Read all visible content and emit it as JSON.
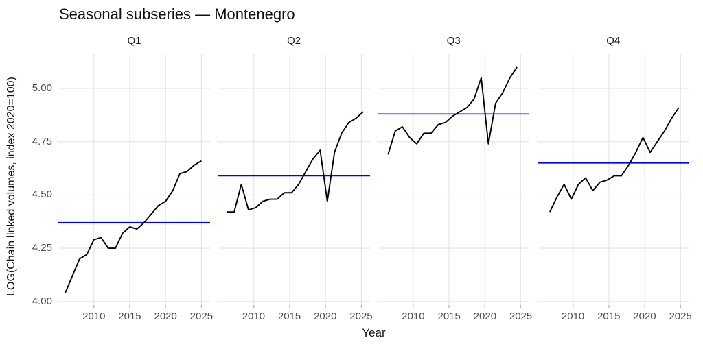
{
  "title": "Seasonal subseries — Montenegro",
  "chart_data": {
    "type": "line",
    "title": "Seasonal subseries — Montenegro",
    "xlabel": "Year",
    "ylabel": "LOG(Chain linked volumes, index 2020=100)",
    "facets": "quarterly seasonal subseries, one panel per quarter",
    "grid": true,
    "legend": false,
    "x_range": [
      2005,
      2026.2
    ],
    "y_range": [
      3.98,
      5.16
    ],
    "x_axis": {
      "ticks": [
        {
          "v": 2010,
          "label": "2010"
        },
        {
          "v": 2015,
          "label": "2015"
        },
        {
          "v": 2020,
          "label": "2020"
        },
        {
          "v": 2025,
          "label": "2025"
        }
      ]
    },
    "y_axis": {
      "ticks": [
        {
          "v": 5.0,
          "label": "5.00"
        },
        {
          "v": 4.75,
          "label": "4.75"
        },
        {
          "v": 4.5,
          "label": "4.50"
        },
        {
          "v": 4.25,
          "label": "4.25"
        },
        {
          "v": 4.0,
          "label": "4.00"
        }
      ]
    },
    "colors": {
      "series": "#000000",
      "mean_line": "#0000FF",
      "gridline": "#E8E8E8",
      "tick_mark": "#B3B3B3",
      "tick_text": "#4D4D4D",
      "background": "#FFFFFF"
    },
    "panels": [
      {
        "label": "Q1",
        "x_offset": 0.0,
        "mean": 4.37,
        "years": [
          2006,
          2007,
          2008,
          2009,
          2010,
          2011,
          2012,
          2013,
          2014,
          2015,
          2016,
          2017,
          2018,
          2019,
          2020,
          2021,
          2022,
          2023,
          2024,
          2025
        ],
        "values": [
          4.04,
          4.12,
          4.2,
          4.22,
          4.29,
          4.3,
          4.25,
          4.25,
          4.32,
          4.35,
          4.34,
          4.37,
          4.41,
          4.45,
          4.47,
          4.52,
          4.6,
          4.61,
          4.64,
          4.66
        ]
      },
      {
        "label": "Q2",
        "x_offset": 0.25,
        "mean": 4.59,
        "years": [
          2006,
          2007,
          2008,
          2009,
          2010,
          2011,
          2012,
          2013,
          2014,
          2015,
          2016,
          2017,
          2018,
          2019,
          2020,
          2021,
          2022,
          2023,
          2024,
          2025
        ],
        "values": [
          4.42,
          4.42,
          4.55,
          4.43,
          4.44,
          4.47,
          4.48,
          4.48,
          4.51,
          4.51,
          4.55,
          4.61,
          4.67,
          4.71,
          4.47,
          4.7,
          4.79,
          4.84,
          4.86,
          4.89
        ]
      },
      {
        "label": "Q3",
        "x_offset": 0.5,
        "mean": 4.88,
        "years": [
          2006,
          2007,
          2008,
          2009,
          2010,
          2011,
          2012,
          2013,
          2014,
          2015,
          2016,
          2017,
          2018,
          2019,
          2020,
          2021,
          2022,
          2023,
          2024
        ],
        "values": [
          4.69,
          4.8,
          4.82,
          4.77,
          4.74,
          4.79,
          4.79,
          4.83,
          4.84,
          4.87,
          4.89,
          4.91,
          4.95,
          5.05,
          4.74,
          4.93,
          4.98,
          5.05,
          5.1
        ]
      },
      {
        "label": "Q4",
        "x_offset": 0.75,
        "mean": 4.65,
        "years": [
          2006,
          2007,
          2008,
          2009,
          2010,
          2011,
          2012,
          2013,
          2014,
          2015,
          2016,
          2017,
          2018,
          2019,
          2020,
          2021,
          2022,
          2023,
          2024
        ],
        "values": [
          4.42,
          4.49,
          4.55,
          4.48,
          4.55,
          4.58,
          4.52,
          4.56,
          4.57,
          4.59,
          4.59,
          4.64,
          4.7,
          4.77,
          4.7,
          4.75,
          4.8,
          4.86,
          4.91
        ]
      }
    ]
  }
}
